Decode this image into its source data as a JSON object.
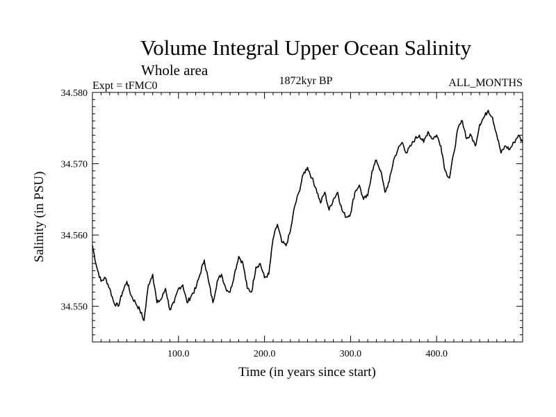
{
  "chart_data": {
    "type": "line",
    "title": "Volume Integral Upper Ocean Salinity",
    "subtitle": "Whole area",
    "experiment_label": "Expt = tFMC0",
    "period_label": "1872kyr BP",
    "months_label": "ALL_MONTHS",
    "xlabel": "Time (in years since start)",
    "ylabel": "Salinity (in PSU)",
    "xlim": [
      0,
      500
    ],
    "ylim": [
      34.545,
      34.58
    ],
    "x_ticks": [
      100,
      200,
      300,
      400
    ],
    "x_tick_labels": [
      "100.0",
      "200.0",
      "300.0",
      "400.0"
    ],
    "y_ticks": [
      34.55,
      34.56,
      34.57,
      34.58
    ],
    "y_tick_labels": [
      "34.550",
      "34.560",
      "34.570",
      "34.580"
    ],
    "grid": false,
    "series": [
      {
        "name": "Salinity",
        "x": [
          0,
          5,
          10,
          15,
          20,
          25,
          30,
          35,
          40,
          45,
          50,
          55,
          60,
          65,
          70,
          75,
          80,
          85,
          90,
          95,
          100,
          105,
          110,
          115,
          120,
          125,
          130,
          135,
          140,
          145,
          150,
          155,
          160,
          165,
          170,
          175,
          180,
          185,
          190,
          195,
          200,
          205,
          210,
          215,
          220,
          225,
          230,
          235,
          240,
          245,
          250,
          255,
          260,
          265,
          270,
          275,
          280,
          285,
          290,
          295,
          300,
          305,
          310,
          315,
          320,
          325,
          330,
          335,
          340,
          345,
          350,
          355,
          360,
          365,
          370,
          375,
          380,
          385,
          390,
          395,
          400,
          405,
          410,
          415,
          420,
          425,
          430,
          435,
          440,
          445,
          450,
          455,
          460,
          465,
          470,
          475,
          480,
          485,
          490,
          495,
          500
        ],
        "values": [
          34.5585,
          34.5555,
          34.5535,
          34.554,
          34.5525,
          34.5505,
          34.55,
          34.552,
          34.5535,
          34.5515,
          34.5505,
          34.5495,
          34.548,
          34.553,
          34.5545,
          34.5505,
          34.551,
          34.5525,
          34.5495,
          34.5505,
          34.5525,
          34.553,
          34.5505,
          34.5515,
          34.5525,
          34.5545,
          34.5565,
          34.5535,
          34.5505,
          34.5535,
          34.5545,
          34.5525,
          34.552,
          34.5545,
          34.557,
          34.556,
          34.5525,
          34.552,
          34.5555,
          34.556,
          34.554,
          34.5545,
          34.5595,
          34.5615,
          34.559,
          34.5585,
          34.5605,
          34.564,
          34.566,
          34.5685,
          34.5695,
          34.568,
          34.5665,
          34.5645,
          34.566,
          34.5635,
          34.565,
          34.566,
          34.5635,
          34.5625,
          34.563,
          34.566,
          34.567,
          34.565,
          34.5655,
          34.569,
          34.5705,
          34.569,
          34.566,
          34.5675,
          34.5705,
          34.572,
          34.573,
          34.5715,
          34.5725,
          34.5735,
          34.574,
          34.573,
          34.5745,
          34.5735,
          34.574,
          34.5725,
          34.569,
          34.568,
          34.5715,
          34.575,
          34.576,
          34.5735,
          34.574,
          34.5725,
          34.5755,
          34.5765,
          34.5775,
          34.5765,
          34.574,
          34.5715,
          34.5725,
          34.572,
          34.573,
          34.574,
          34.573
        ]
      }
    ]
  },
  "colors": {
    "background": "#ffffff",
    "axis": "#000000",
    "line": "#000000"
  }
}
